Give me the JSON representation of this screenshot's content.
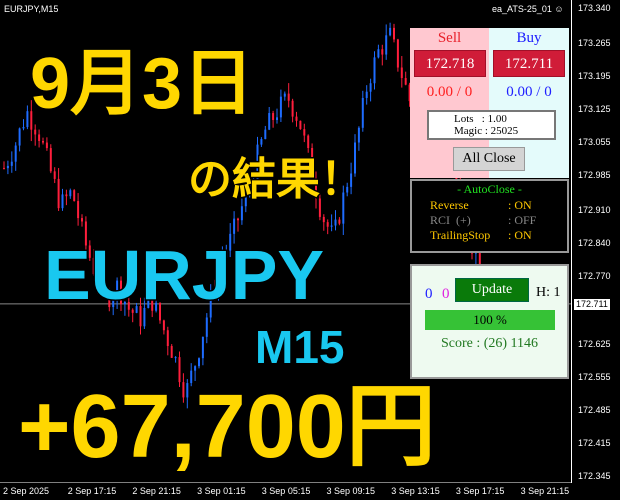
{
  "chart": {
    "symbol": "EURJPY,M15",
    "ea_name": "ea_ATS-25_01",
    "ea_icon": "smiley-icon",
    "price_labels": [
      "173.340",
      "173.265",
      "173.195",
      "173.125",
      "173.055",
      "172.985",
      "172.910",
      "172.840",
      "172.770",
      "172.625",
      "172.555",
      "172.485",
      "172.415",
      "172.345"
    ],
    "current_price": "172.711",
    "time_labels": [
      "2 Sep 2025",
      "2 Sep 17:15",
      "2 Sep 21:15",
      "3 Sep 01:15",
      "3 Sep 05:15",
      "3 Sep 09:15",
      "3 Sep 13:15",
      "3 Sep 17:15",
      "3 Sep 21:15"
    ],
    "bull_color": "#1e6cff",
    "bear_color": "#ff1e3c",
    "close_path": [
      173.0,
      173.05,
      173.12,
      173.08,
      173.0,
      172.92,
      172.95,
      172.85,
      172.78,
      172.72,
      172.75,
      172.7,
      172.68,
      172.72,
      172.66,
      172.6,
      172.52,
      172.6,
      172.7,
      172.8,
      172.85,
      172.92,
      173.0,
      173.08,
      173.12,
      173.15,
      173.1,
      173.0,
      172.9,
      172.85,
      172.95,
      173.05,
      173.18,
      173.25,
      173.28,
      173.2,
      173.12,
      173.1,
      173.15,
      173.05,
      172.95,
      172.85,
      172.8,
      172.75,
      172.68,
      172.6,
      172.57
    ]
  },
  "overlay": {
    "date": "9月3日",
    "result": "の結果！",
    "pair": "EURJPY",
    "timeframe": "M15",
    "profit": "+67,700円"
  },
  "panel": {
    "sell_label": "Sell",
    "buy_label": "Buy",
    "sell_price": "172.718",
    "buy_price": "172.711",
    "sell_pl": "0.00 / 0",
    "buy_pl": "0.00 / 0",
    "lots": "Lots   : 1.00",
    "magic": "Magic : 25025",
    "all_close": "All Close",
    "autoclose_title": "- AutoClose -",
    "rows": [
      {
        "label": "Reverse",
        "value": ": ON"
      },
      {
        "label": "RCI  (+)",
        "value": ": OFF"
      },
      {
        "label": "TrailingStop",
        "value": ": ON"
      }
    ],
    "count_blue": "0",
    "count_magenta": "0",
    "update": "Update",
    "h": "H: 1",
    "progress_label": "100 %",
    "progress": 100,
    "score": "Score : (26) 1146"
  }
}
